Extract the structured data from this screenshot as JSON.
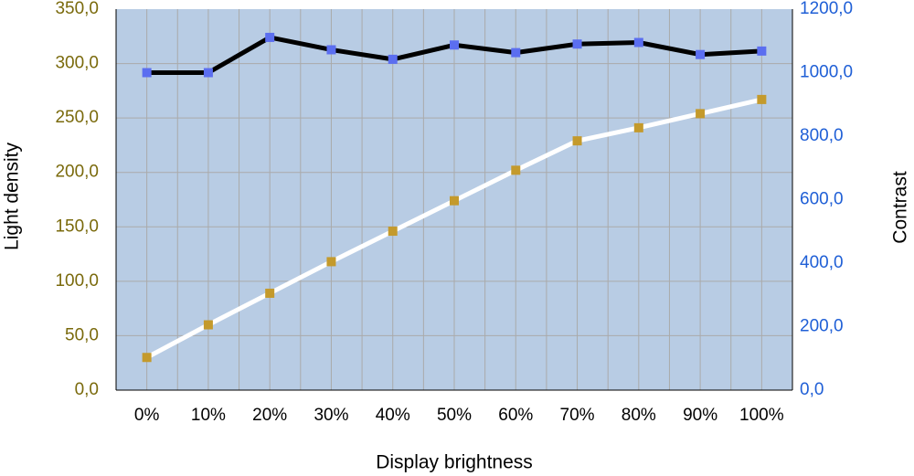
{
  "colors": {
    "plot_background": "#b8cce4",
    "gridline": "#aaaaaa",
    "left_axis_text": "#7a6a0c",
    "right_axis_text": "#1f5fd6",
    "contrast_line": "#000000",
    "contrast_marker": "#5b6ef0",
    "density_line": "#ffffff",
    "density_marker": "#c49a2c"
  },
  "chart_data": {
    "type": "line",
    "title": "",
    "xlabel": "Display brightness",
    "ylabel": "Light density",
    "y2label": "Contrast",
    "categories": [
      "0%",
      "10%",
      "20%",
      "30%",
      "40%",
      "50%",
      "60%",
      "70%",
      "80%",
      "90%",
      "100%"
    ],
    "ylim": [
      0,
      350
    ],
    "y_ticks": [
      "0,0",
      "50,0",
      "100,0",
      "150,0",
      "200,0",
      "250,0",
      "300,0",
      "350,0"
    ],
    "y2lim": [
      0,
      1200
    ],
    "y2_ticks": [
      "0,0",
      "200,0",
      "400,0",
      "600,0",
      "800,0",
      "1000,0",
      "1200,0"
    ],
    "grid": true,
    "series": [
      {
        "axis": "left",
        "values": [
          30,
          60,
          89,
          118,
          146,
          174,
          202,
          229,
          241,
          254,
          267
        ]
      },
      {
        "axis": "right",
        "values": [
          1000,
          1000,
          1111,
          1072,
          1042,
          1087,
          1063,
          1090,
          1095,
          1057,
          1068
        ]
      }
    ]
  }
}
